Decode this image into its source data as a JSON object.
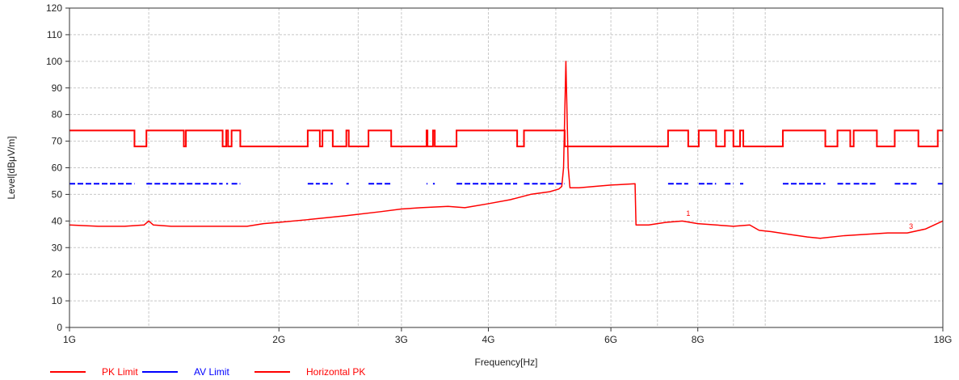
{
  "chart_data": {
    "type": "line",
    "xlabel": "Frequency[Hz]",
    "ylabel": "Level[dBμV/m]",
    "x_scale": "log",
    "xlim": [
      1000000000,
      18000000000
    ],
    "ylim": [
      0,
      120
    ],
    "grid": true,
    "legend_position": "bottom-left",
    "x_ticks": [
      {
        "value": 1000000000,
        "label": "1G"
      },
      {
        "value": 2000000000,
        "label": "2G"
      },
      {
        "value": 3000000000,
        "label": "3G"
      },
      {
        "value": 4000000000,
        "label": "4G"
      },
      {
        "value": 6000000000,
        "label": "6G"
      },
      {
        "value": 8000000000,
        "label": "8G"
      },
      {
        "value": 18000000000,
        "label": "18G"
      }
    ],
    "x_gridlines": [
      1000000000,
      1300000000,
      2000000000,
      2600000000,
      3000000000,
      4000000000,
      5000000000,
      6000000000,
      7000000000,
      8000000000,
      9000000000,
      10000000000,
      18000000000
    ],
    "y_ticks": [
      0,
      10,
      20,
      30,
      40,
      50,
      60,
      70,
      80,
      90,
      100,
      110,
      120
    ],
    "series": [
      {
        "name": "PK Limit",
        "color": "#ff0000",
        "style": "step",
        "points": [
          [
            1000000000,
            74
          ],
          [
            1240000000,
            74
          ],
          [
            1240000000,
            68
          ],
          [
            1290000000,
            68
          ],
          [
            1290000000,
            74
          ],
          [
            1460000000,
            74
          ],
          [
            1460000000,
            68
          ],
          [
            1470000000,
            68
          ],
          [
            1470000000,
            74
          ],
          [
            1660000000,
            74
          ],
          [
            1660000000,
            68
          ],
          [
            1680000000,
            68
          ],
          [
            1680000000,
            74
          ],
          [
            1690000000,
            74
          ],
          [
            1690000000,
            68
          ],
          [
            1710000000,
            68
          ],
          [
            1710000000,
            74
          ],
          [
            1760000000,
            74
          ],
          [
            1760000000,
            68
          ],
          [
            2200000000,
            68
          ],
          [
            2200000000,
            74
          ],
          [
            2290000000,
            74
          ],
          [
            2290000000,
            68
          ],
          [
            2310000000,
            68
          ],
          [
            2310000000,
            74
          ],
          [
            2390000000,
            74
          ],
          [
            2390000000,
            68
          ],
          [
            2500000000,
            68
          ],
          [
            2500000000,
            74
          ],
          [
            2520000000,
            74
          ],
          [
            2520000000,
            68
          ],
          [
            2690000000,
            68
          ],
          [
            2690000000,
            74
          ],
          [
            2900000000,
            74
          ],
          [
            2900000000,
            68
          ],
          [
            3260000000,
            68
          ],
          [
            3260000000,
            74
          ],
          [
            3270000000,
            74
          ],
          [
            3270000000,
            68
          ],
          [
            3330000000,
            68
          ],
          [
            3330000000,
            74
          ],
          [
            3350000000,
            74
          ],
          [
            3350000000,
            68
          ],
          [
            3600000000,
            68
          ],
          [
            3600000000,
            74
          ],
          [
            4400000000,
            74
          ],
          [
            4400000000,
            68
          ],
          [
            4500000000,
            68
          ],
          [
            4500000000,
            74
          ],
          [
            5150000000,
            74
          ],
          [
            5150000000,
            68
          ],
          [
            7250000000,
            68
          ],
          [
            7250000000,
            74
          ],
          [
            7750000000,
            74
          ],
          [
            7750000000,
            68
          ],
          [
            8025000000,
            68
          ],
          [
            8025000000,
            74
          ],
          [
            8500000000,
            74
          ],
          [
            8500000000,
            68
          ],
          [
            8750000000,
            68
          ],
          [
            8750000000,
            74
          ],
          [
            9000000000,
            74
          ],
          [
            9000000000,
            68
          ],
          [
            9200000000,
            68
          ],
          [
            9200000000,
            74
          ],
          [
            9300000000,
            74
          ],
          [
            9300000000,
            68
          ],
          [
            10600000000,
            68
          ],
          [
            10600000000,
            74
          ],
          [
            12200000000,
            74
          ],
          [
            12200000000,
            68
          ],
          [
            12700000000,
            68
          ],
          [
            12700000000,
            74
          ],
          [
            13250000000,
            74
          ],
          [
            13250000000,
            68
          ],
          [
            13400000000,
            68
          ],
          [
            13400000000,
            74
          ],
          [
            14470000000,
            74
          ],
          [
            14470000000,
            68
          ],
          [
            15350000000,
            68
          ],
          [
            15350000000,
            74
          ],
          [
            16600000000,
            74
          ],
          [
            16600000000,
            68
          ],
          [
            17700000000,
            68
          ],
          [
            17700000000,
            74
          ],
          [
            18000000000,
            74
          ]
        ]
      },
      {
        "name": "AV Limit",
        "color": "#0000ff",
        "style": "segments",
        "level": 54,
        "segments": [
          [
            1000000000,
            1240000000
          ],
          [
            1290000000,
            1660000000
          ],
          [
            1680000000,
            1690000000
          ],
          [
            1710000000,
            1760000000
          ],
          [
            2200000000,
            2290000000
          ],
          [
            2310000000,
            2390000000
          ],
          [
            2500000000,
            2520000000
          ],
          [
            2690000000,
            2900000000
          ],
          [
            3260000000,
            3270000000
          ],
          [
            3330000000,
            3350000000
          ],
          [
            3600000000,
            4400000000
          ],
          [
            4500000000,
            5150000000
          ],
          [
            7250000000,
            7750000000
          ],
          [
            8025000000,
            8500000000
          ],
          [
            8750000000,
            9000000000
          ],
          [
            9200000000,
            9300000000
          ],
          [
            10600000000,
            12200000000
          ],
          [
            12700000000,
            13250000000
          ],
          [
            13400000000,
            14470000000
          ],
          [
            15350000000,
            16600000000
          ],
          [
            17700000000,
            18000000000
          ]
        ]
      },
      {
        "name": "Horizontal PK",
        "color": "#ff0000",
        "style": "line",
        "points": [
          [
            1000000000,
            38.5
          ],
          [
            1100000000,
            38
          ],
          [
            1200000000,
            38
          ],
          [
            1280000000,
            38.5
          ],
          [
            1300000000,
            40
          ],
          [
            1320000000,
            38.5
          ],
          [
            1400000000,
            38
          ],
          [
            1500000000,
            38
          ],
          [
            1600000000,
            38
          ],
          [
            1700000000,
            38
          ],
          [
            1800000000,
            38
          ],
          [
            1900000000,
            39
          ],
          [
            2000000000,
            39.5
          ],
          [
            2200000000,
            40.5
          ],
          [
            2500000000,
            42
          ],
          [
            2800000000,
            43.5
          ],
          [
            3000000000,
            44.5
          ],
          [
            3200000000,
            45
          ],
          [
            3500000000,
            45.5
          ],
          [
            3700000000,
            45
          ],
          [
            4000000000,
            46.5
          ],
          [
            4300000000,
            48
          ],
          [
            4600000000,
            50
          ],
          [
            4900000000,
            51
          ],
          [
            5050000000,
            52
          ],
          [
            5100000000,
            53
          ],
          [
            5130000000,
            60
          ],
          [
            5150000000,
            80
          ],
          [
            5170000000,
            100
          ],
          [
            5190000000,
            80
          ],
          [
            5210000000,
            60
          ],
          [
            5240000000,
            52.5
          ],
          [
            5400000000,
            52.5
          ],
          [
            5700000000,
            53
          ],
          [
            6000000000,
            53.5
          ],
          [
            6500000000,
            54
          ],
          [
            6520000000,
            38.5
          ],
          [
            6800000000,
            38.5
          ],
          [
            7200000000,
            39.5
          ],
          [
            7600000000,
            40
          ],
          [
            8000000000,
            39
          ],
          [
            8500000000,
            38.5
          ],
          [
            9000000000,
            38
          ],
          [
            9500000000,
            38.5
          ],
          [
            9800000000,
            36.5
          ],
          [
            10200000000,
            36
          ],
          [
            10800000000,
            35
          ],
          [
            11500000000,
            34
          ],
          [
            12000000000,
            33.5
          ],
          [
            13000000000,
            34.5
          ],
          [
            14000000000,
            35
          ],
          [
            15000000000,
            35.5
          ],
          [
            16000000000,
            35.5
          ],
          [
            17000000000,
            37
          ],
          [
            18000000000,
            40
          ]
        ]
      }
    ],
    "markers": [
      {
        "label": "1",
        "x": 7750000000,
        "y": 42
      },
      {
        "label": "3",
        "x": 16200000000,
        "y": 37
      }
    ]
  }
}
